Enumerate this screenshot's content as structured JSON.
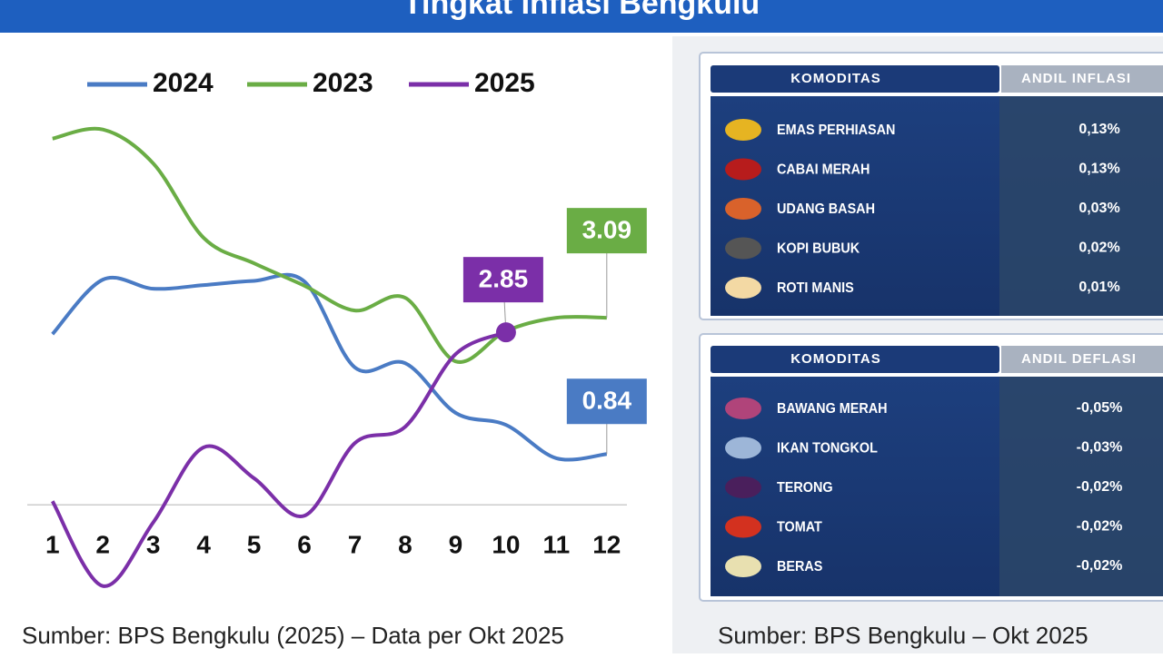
{
  "title": "Tingkat Inflasi Bengkulu",
  "chart_data": {
    "type": "line",
    "x": [
      1,
      2,
      3,
      4,
      5,
      6,
      7,
      8,
      9,
      10,
      11,
      12
    ],
    "xlim": [
      0.5,
      12.4
    ],
    "xticks": [
      1,
      2,
      3,
      4,
      5,
      6,
      7,
      8,
      9,
      10,
      11,
      12
    ],
    "ylim": [
      -1.6,
      6.9
    ],
    "series": [
      {
        "name": "2024",
        "color": "#4a7bc4",
        "values": [
          2.82,
          3.72,
          3.57,
          3.63,
          3.7,
          3.69,
          2.27,
          2.34,
          1.52,
          1.32,
          0.77,
          0.84
        ]
      },
      {
        "name": "2023",
        "color": "#6aad45",
        "values": [
          6.05,
          6.2,
          5.64,
          4.41,
          3.99,
          3.62,
          3.21,
          3.42,
          2.37,
          2.87,
          3.09,
          3.09
        ]
      },
      {
        "name": "2025",
        "color": "#7b2fa8",
        "values": [
          0.06,
          -1.34,
          -0.29,
          0.95,
          0.44,
          -0.18,
          1.02,
          1.29,
          2.49,
          2.85,
          null,
          null
        ]
      }
    ],
    "source": "Sumber: BPS Bengkulu (2025) – Data per Okt 2025"
  },
  "tables": [
    {
      "header": [
        "KOMODITAS",
        "ANDIL INFLASI"
      ],
      "rows": [
        [
          "EMAS PERHIASAN",
          "0,13%"
        ],
        [
          "CABAI MERAH",
          "0,13%"
        ],
        [
          "UDANG BASAH",
          "0,03%"
        ],
        [
          "KOPI BUBUK",
          "0,02%"
        ],
        [
          "ROTI MANIS",
          "0,01%"
        ]
      ]
    },
    {
      "header": [
        "KOMODITAS",
        "ANDIL DEFLASI"
      ],
      "rows": [
        [
          "BAWANG MERAH",
          "-0,05%"
        ],
        [
          "IKAN TONGKOL",
          "-0,03%"
        ],
        [
          "TERONG",
          "-0,02%"
        ],
        [
          "TOMAT",
          "-0,02%"
        ],
        [
          "BERAS",
          "-0,02%"
        ]
      ]
    }
  ],
  "source": "Sumber: BPS Bengkulu – Okt 2025"
}
